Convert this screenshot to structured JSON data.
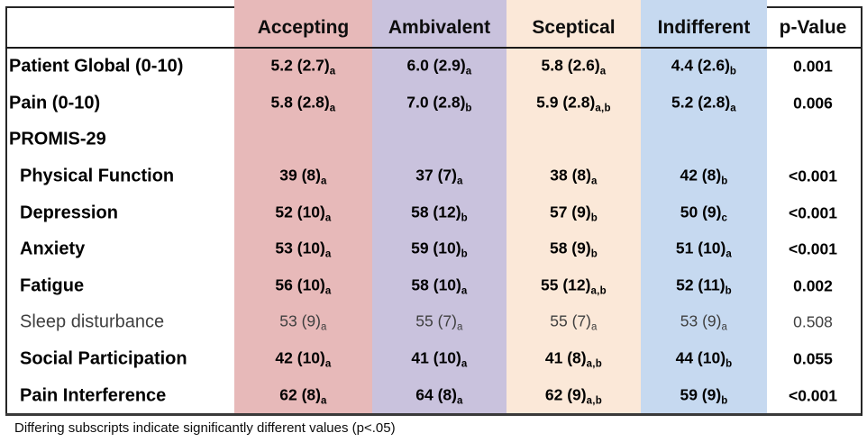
{
  "table": {
    "columns": [
      "Accepting",
      "Ambivalent",
      "Sceptical",
      "Indifferent",
      "p-Value"
    ],
    "column_colors": [
      "#e7b9b9",
      "#c9c2dd",
      "#fbe8d8",
      "#c6d9f0"
    ],
    "rows": [
      {
        "label": "Patient Global (0-10)",
        "indent": false,
        "muted": false,
        "cells": [
          {
            "v": "5.2 (2.7)",
            "sub": "a"
          },
          {
            "v": "6.0 (2.9)",
            "sub": "a"
          },
          {
            "v": "5.8 (2.6)",
            "sub": "a"
          },
          {
            "v": "4.4 (2.6)",
            "sub": "b"
          }
        ],
        "p": "0.001"
      },
      {
        "label": "Pain (0-10)",
        "indent": false,
        "muted": false,
        "cells": [
          {
            "v": "5.8 (2.8)",
            "sub": "a"
          },
          {
            "v": "7.0 (2.8)",
            "sub": "b"
          },
          {
            "v": "5.9 (2.8)",
            "sub": "a,b"
          },
          {
            "v": "5.2 (2.8)",
            "sub": "a"
          }
        ],
        "p": "0.006"
      },
      {
        "label": "PROMIS-29",
        "indent": false,
        "muted": false,
        "cells": [],
        "p": ""
      },
      {
        "label": "Physical Function",
        "indent": true,
        "muted": false,
        "cells": [
          {
            "v": "39 (8)",
            "sub": "a"
          },
          {
            "v": "37 (7)",
            "sub": "a"
          },
          {
            "v": "38 (8)",
            "sub": "a"
          },
          {
            "v": "42 (8)",
            "sub": "b"
          }
        ],
        "p": "<0.001"
      },
      {
        "label": "Depression",
        "indent": true,
        "muted": false,
        "cells": [
          {
            "v": "52 (10)",
            "sub": "a"
          },
          {
            "v": "58 (12)",
            "sub": "b"
          },
          {
            "v": "57 (9)",
            "sub": "b"
          },
          {
            "v": "50 (9)",
            "sub": "c"
          }
        ],
        "p": "<0.001"
      },
      {
        "label": "Anxiety",
        "indent": true,
        "muted": false,
        "cells": [
          {
            "v": "53 (10)",
            "sub": "a"
          },
          {
            "v": "59 (10)",
            "sub": "b"
          },
          {
            "v": "58 (9)",
            "sub": "b"
          },
          {
            "v": "51 (10)",
            "sub": "a"
          }
        ],
        "p": "<0.001"
      },
      {
        "label": "Fatigue",
        "indent": true,
        "muted": false,
        "cells": [
          {
            "v": "56 (10)",
            "sub": "a"
          },
          {
            "v": "58 (10)",
            "sub": "a"
          },
          {
            "v": "55 (12)",
            "sub": "a,b"
          },
          {
            "v": "52 (11)",
            "sub": "b"
          }
        ],
        "p": "0.002"
      },
      {
        "label": "Sleep disturbance",
        "indent": true,
        "muted": true,
        "cells": [
          {
            "v": "53 (9)",
            "sub": "a"
          },
          {
            "v": "55 (7)",
            "sub": "a"
          },
          {
            "v": "55 (7)",
            "sub": "a"
          },
          {
            "v": "53 (9)",
            "sub": "a"
          }
        ],
        "p": "0.508"
      },
      {
        "label": "Social Participation",
        "indent": true,
        "muted": false,
        "cells": [
          {
            "v": "42 (10)",
            "sub": "a"
          },
          {
            "v": "41 (10)",
            "sub": "a"
          },
          {
            "v": "41 (8)",
            "sub": "a,b"
          },
          {
            "v": "44 (10)",
            "sub": "b"
          }
        ],
        "p": "0.055"
      },
      {
        "label": "Pain Interference",
        "indent": true,
        "muted": false,
        "cells": [
          {
            "v": "62 (8)",
            "sub": "a"
          },
          {
            "v": "64 (8)",
            "sub": "a"
          },
          {
            "v": "62 (9)",
            "sub": "a,b"
          },
          {
            "v": "59 (9)",
            "sub": "b"
          }
        ],
        "p": "<0.001"
      }
    ],
    "footnote": "Differing subscripts indicate significantly different values (p<.05)"
  }
}
